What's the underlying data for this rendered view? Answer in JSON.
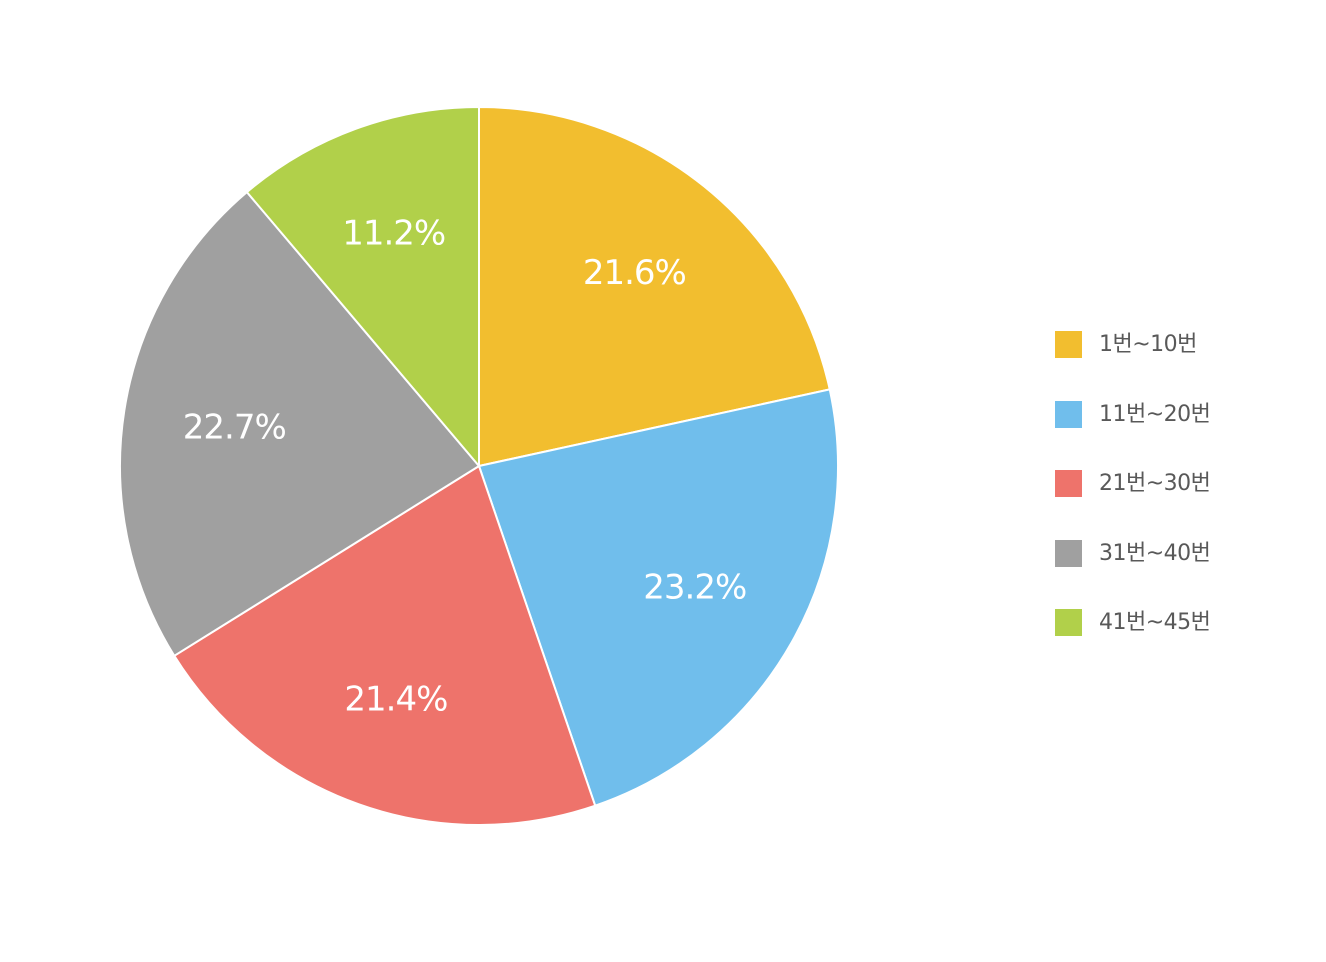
{
  "chart_data": {
    "type": "pie",
    "categories": [
      "1번~10번",
      "11번~20번",
      "21번~30번",
      "31번~40번",
      "41번~45번"
    ],
    "values": [
      21.6,
      23.2,
      21.4,
      22.7,
      11.2
    ],
    "value_labels": [
      "21.6%",
      "23.2%",
      "21.4%",
      "22.7%",
      "11.2%"
    ],
    "colors": [
      "#F2BE2F",
      "#70BEEC",
      "#EE736B",
      "#A0A0A0",
      "#B1D04A"
    ],
    "legend_position": "right",
    "start": "top",
    "direction": "clockwise"
  },
  "legend": {
    "items": [
      {
        "label": "1번~10번",
        "color": "#F2BE2F"
      },
      {
        "label": "11번~20번",
        "color": "#70BEEC"
      },
      {
        "label": "21번~30번",
        "color": "#EE736B"
      },
      {
        "label": "31번~40번",
        "color": "#A0A0A0"
      },
      {
        "label": "41번~45번",
        "color": "#B1D04A"
      }
    ]
  }
}
